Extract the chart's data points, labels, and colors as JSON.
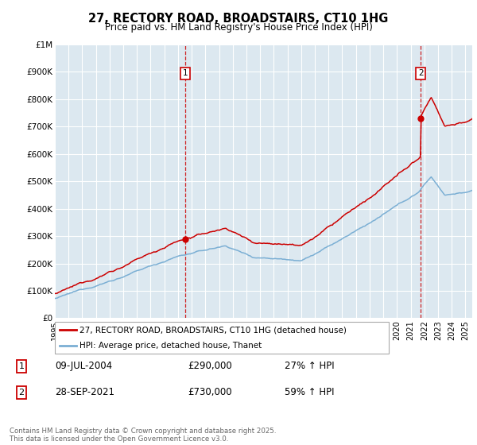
{
  "title": "27, RECTORY ROAD, BROADSTAIRS, CT10 1HG",
  "subtitle": "Price paid vs. HM Land Registry's House Price Index (HPI)",
  "legend_line1": "27, RECTORY ROAD, BROADSTAIRS, CT10 1HG (detached house)",
  "legend_line2": "HPI: Average price, detached house, Thanet",
  "annotation1_label": "1",
  "annotation1_date": "09-JUL-2004",
  "annotation1_price": "£290,000",
  "annotation1_hpi": "27% ↑ HPI",
  "annotation2_label": "2",
  "annotation2_date": "28-SEP-2021",
  "annotation2_price": "£730,000",
  "annotation2_hpi": "59% ↑ HPI",
  "footer": "Contains HM Land Registry data © Crown copyright and database right 2025.\nThis data is licensed under the Open Government Licence v3.0.",
  "red_color": "#cc0000",
  "blue_color": "#7bafd4",
  "bg_color": "#ffffff",
  "plot_bg_color": "#dce8f0",
  "grid_color": "#ffffff",
  "sale1_x": 2004.52,
  "sale1_y": 290000,
  "sale2_x": 2021.74,
  "sale2_y": 730000,
  "xmin": 1995,
  "xmax": 2025.5,
  "ylim": [
    0,
    1000000
  ],
  "ytick_vals": [
    0,
    100000,
    200000,
    300000,
    400000,
    500000,
    600000,
    700000,
    800000,
    900000,
    1000000
  ],
  "ytick_labels": [
    "£0",
    "£100K",
    "£200K",
    "£300K",
    "£400K",
    "£500K",
    "£600K",
    "£700K",
    "£800K",
    "£900K",
    "£1M"
  ]
}
